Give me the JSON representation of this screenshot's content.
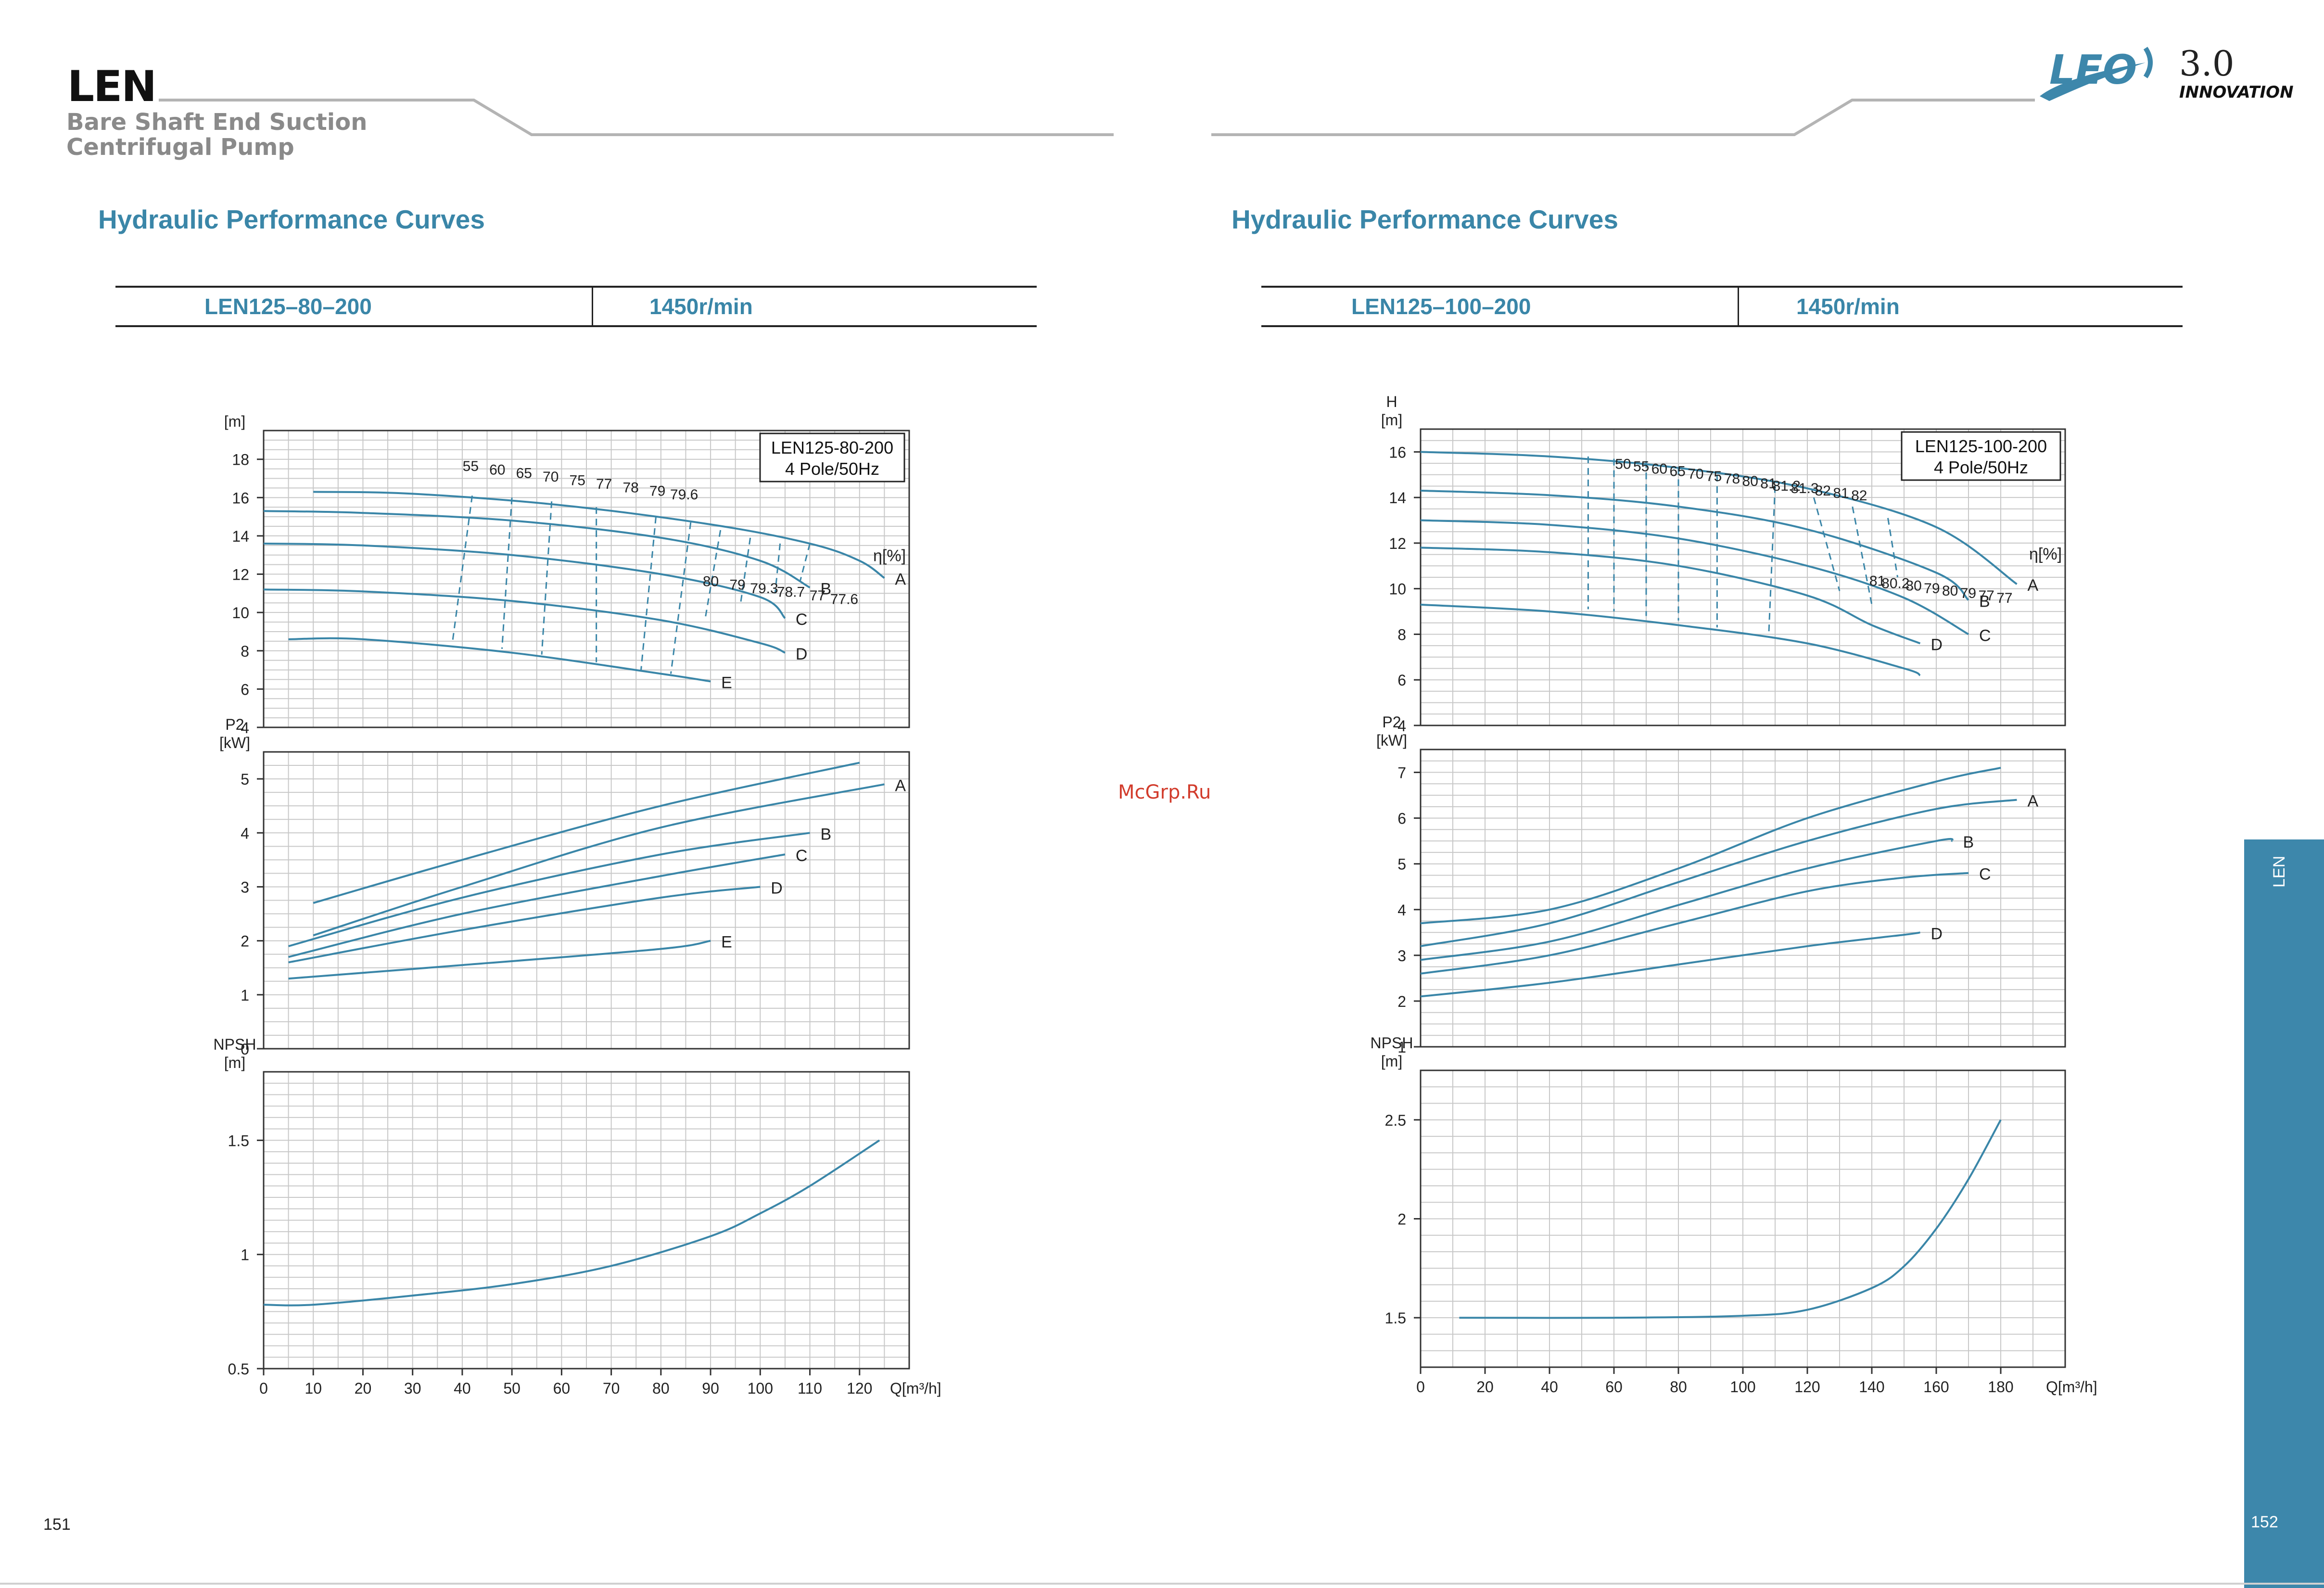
{
  "header": {
    "brand": "LEN",
    "subtitle_line1": "Bare Shaft End Suction",
    "subtitle_line2": "Centrifugal Pump",
    "logo_leo": "LEO",
    "logo_version": "3.0",
    "logo_innovation": "INNOVATION"
  },
  "watermark": "McGrp.Ru",
  "side_tab": {
    "label": "LEN",
    "page": "152"
  },
  "colors": {
    "curve": "#3a86a8",
    "title": "#3a86a8",
    "grid": "#c8c8c8",
    "tab": "#3d87ab"
  },
  "pages": [
    {
      "page_number": "151",
      "section_title": "Hydraulic Performance Curves",
      "model": "LEN125–80–200",
      "speed": "1450r/min"
    },
    {
      "page_number": "152",
      "section_title": "Hydraulic Performance Curves",
      "model": "LEN125–100–200",
      "speed": "1450r/min"
    }
  ],
  "chart_data": [
    {
      "type": "line",
      "title": "LEN125-80-200",
      "subtitle": "4 Pole/50Hz",
      "x": {
        "label": "Q[m³/h]",
        "ticks": [
          0,
          10,
          20,
          30,
          40,
          50,
          60,
          70,
          80,
          90,
          100,
          110,
          120
        ],
        "lim": [
          0,
          130
        ]
      },
      "efficiency_label": "η[%]",
      "head": {
        "ylabel": "[m]",
        "ylim": [
          4,
          19.5
        ],
        "ticks": [
          4,
          6,
          8,
          10,
          12,
          14,
          16,
          18
        ],
        "series": [
          {
            "name": "A",
            "x": [
              10,
              30,
              60,
              90,
              110,
              120,
              125
            ],
            "y": [
              16.3,
              16.2,
              15.6,
              14.6,
              13.6,
              12.7,
              11.8
            ]
          },
          {
            "name": "B",
            "x": [
              0,
              20,
              50,
              80,
              100,
              110
            ],
            "y": [
              15.3,
              15.2,
              14.8,
              13.9,
              12.7,
              11.3
            ]
          },
          {
            "name": "C",
            "x": [
              0,
              20,
              50,
              80,
              100,
              105
            ],
            "y": [
              13.6,
              13.5,
              13.0,
              12.0,
              10.8,
              9.7
            ]
          },
          {
            "name": "D",
            "x": [
              0,
              20,
              50,
              80,
              100,
              105
            ],
            "y": [
              11.2,
              11.1,
              10.6,
              9.6,
              8.4,
              7.9
            ]
          },
          {
            "name": "E",
            "x": [
              5,
              20,
              50,
              80,
              90
            ],
            "y": [
              8.6,
              8.6,
              7.9,
              6.8,
              6.4
            ]
          }
        ],
        "efficiency_labels": [
          "55",
          "60",
          "65",
          "70",
          "75",
          "77",
          "78",
          "79",
          "79.6",
          "80",
          "79",
          "79.3",
          "78.7",
          "77",
          "77.6"
        ],
        "efficiency_lines": [
          {
            "top": [
              42,
              16.1
            ],
            "bottom": [
              38,
              8.4
            ]
          },
          {
            "top": [
              50,
              16.0
            ],
            "bottom": [
              48,
              8.1
            ]
          },
          {
            "top": [
              58,
              15.8
            ],
            "bottom": [
              56,
              7.8
            ]
          },
          {
            "top": [
              67,
              15.5
            ],
            "bottom": [
              67,
              7.4
            ]
          },
          {
            "top": [
              79,
              15.0
            ],
            "bottom": [
              76,
              7.0
            ]
          },
          {
            "top": [
              86,
              14.7
            ],
            "bottom": [
              82,
              6.8
            ]
          },
          {
            "top": [
              92,
              14.3
            ],
            "bottom": [
              89,
              9.8
            ]
          },
          {
            "top": [
              98,
              13.9
            ],
            "bottom": [
              96,
              10.4
            ]
          },
          {
            "top": [
              104,
              13.6
            ],
            "bottom": [
              103,
              11.0
            ]
          },
          {
            "top": [
              110,
              13.6
            ],
            "bottom": [
              108,
              11.6
            ]
          }
        ]
      },
      "power": {
        "ylabel": "P2\n[kW]",
        "ylim": [
          0,
          5.5
        ],
        "ticks": [
          0,
          1,
          2,
          3,
          4,
          5
        ],
        "series": [
          {
            "name": "",
            "x": [
              10,
              40,
              80,
              120
            ],
            "y": [
              2.7,
              3.5,
              4.5,
              5.3
            ]
          },
          {
            "name": "A",
            "x": [
              10,
              40,
              80,
              125
            ],
            "y": [
              2.1,
              3.0,
              4.1,
              4.9
            ]
          },
          {
            "name": "B",
            "x": [
              5,
              40,
              80,
              110
            ],
            "y": [
              1.9,
              2.8,
              3.6,
              4.0
            ]
          },
          {
            "name": "C",
            "x": [
              5,
              40,
              80,
              105
            ],
            "y": [
              1.7,
              2.5,
              3.2,
              3.6
            ]
          },
          {
            "name": "D",
            "x": [
              5,
              40,
              80,
              100
            ],
            "y": [
              1.6,
              2.2,
              2.8,
              3.0
            ]
          },
          {
            "name": "E",
            "x": [
              5,
              40,
              80,
              90
            ],
            "y": [
              1.3,
              1.55,
              1.85,
              2.0
            ]
          }
        ]
      },
      "npsh": {
        "ylabel": "NPSH\n[m]",
        "ylim": [
          0.5,
          1.8
        ],
        "ticks": [
          0.5,
          1.0,
          1.5
        ],
        "series": [
          {
            "name": "NPSH",
            "x": [
              0,
              10,
              30,
              50,
              70,
              90,
              100,
              110,
              124
            ],
            "y": [
              0.78,
              0.78,
              0.82,
              0.87,
              0.95,
              1.08,
              1.18,
              1.3,
              1.5
            ]
          }
        ]
      }
    },
    {
      "type": "line",
      "title": "LEN125-100-200",
      "subtitle": "4 Pole/50Hz",
      "x": {
        "label": "Q[m³/h]",
        "ticks": [
          0,
          20,
          40,
          60,
          80,
          100,
          120,
          140,
          160,
          180
        ],
        "lim": [
          0,
          200
        ]
      },
      "efficiency_label": "η[%]",
      "head": {
        "ylabel": "H\n[m]",
        "ylim": [
          4,
          17
        ],
        "ticks": [
          4,
          6,
          8,
          10,
          12,
          14,
          16
        ],
        "series": [
          {
            "name": "A",
            "x": [
              0,
              40,
              80,
              120,
              160,
              185
            ],
            "y": [
              16.0,
              15.8,
              15.3,
              14.4,
              12.7,
              10.2
            ]
          },
          {
            "name": "B",
            "x": [
              0,
              40,
              80,
              120,
              160,
              170
            ],
            "y": [
              14.3,
              14.1,
              13.6,
              12.6,
              10.7,
              9.5
            ]
          },
          {
            "name": "C",
            "x": [
              0,
              40,
              80,
              120,
              150,
              170
            ],
            "y": [
              13.0,
              12.8,
              12.2,
              11.0,
              9.6,
              8.0
            ]
          },
          {
            "name": "D",
            "x": [
              0,
              40,
              80,
              120,
              140,
              155
            ],
            "y": [
              11.8,
              11.6,
              11.0,
              9.7,
              8.4,
              7.6
            ]
          },
          {
            "name": "",
            "x": [
              0,
              40,
              80,
              120,
              150,
              155
            ],
            "y": [
              9.3,
              9.0,
              8.4,
              7.6,
              6.5,
              6.2
            ]
          }
        ],
        "efficiency_labels": [
          "50",
          "55",
          "60",
          "65",
          "70",
          "75",
          "78",
          "80",
          "81",
          "81.2",
          "81.3",
          "82",
          "81",
          "82",
          "81",
          "80.2",
          "80",
          "79",
          "80",
          "79",
          "77",
          "77"
        ],
        "efficiency_lines": [
          {
            "top": [
              52,
              15.8
            ],
            "bottom": [
              52,
              9.1
            ]
          },
          {
            "top": [
              60,
              15.7
            ],
            "bottom": [
              60,
              9.0
            ]
          },
          {
            "top": [
              70,
              15.6
            ],
            "bottom": [
              70,
              8.8
            ]
          },
          {
            "top": [
              80,
              15.3
            ],
            "bottom": [
              80,
              8.6
            ]
          },
          {
            "top": [
              92,
              15.0
            ],
            "bottom": [
              92,
              8.3
            ]
          },
          {
            "top": [
              110,
              14.5
            ],
            "bottom": [
              108,
              7.9
            ]
          },
          {
            "top": [
              122,
              14.0
            ],
            "bottom": [
              130,
              9.9
            ]
          },
          {
            "top": [
              134,
              13.6
            ],
            "bottom": [
              140,
              9.3
            ]
          },
          {
            "top": [
              145,
              13.1
            ],
            "bottom": [
              148,
              10.5
            ]
          }
        ]
      },
      "power": {
        "ylabel": "P2\n[kW]",
        "ylim": [
          1,
          7.5
        ],
        "ticks": [
          1,
          2,
          3,
          4,
          5,
          6,
          7
        ],
        "series": [
          {
            "name": "",
            "x": [
              0,
              40,
              80,
              120,
              160,
              180
            ],
            "y": [
              3.7,
              4.0,
              4.9,
              6.0,
              6.8,
              7.1
            ]
          },
          {
            "name": "A",
            "x": [
              0,
              40,
              80,
              120,
              160,
              185
            ],
            "y": [
              3.2,
              3.7,
              4.6,
              5.5,
              6.2,
              6.4
            ]
          },
          {
            "name": "B",
            "x": [
              0,
              40,
              80,
              120,
              160,
              165
            ],
            "y": [
              2.9,
              3.3,
              4.1,
              4.9,
              5.5,
              5.5
            ]
          },
          {
            "name": "C",
            "x": [
              0,
              40,
              80,
              120,
              150,
              170
            ],
            "y": [
              2.6,
              3.0,
              3.7,
              4.4,
              4.7,
              4.8
            ]
          },
          {
            "name": "D",
            "x": [
              0,
              40,
              80,
              120,
              150,
              155
            ],
            "y": [
              2.1,
              2.4,
              2.8,
              3.2,
              3.45,
              3.5
            ]
          }
        ]
      },
      "npsh": {
        "ylabel": "NPSH\n[m]",
        "ylim": [
          1.25,
          2.75
        ],
        "ticks": [
          1.5,
          2.0,
          2.5
        ],
        "series": [
          {
            "name": "NPSH",
            "x": [
              12,
              60,
              100,
              120,
              140,
              150,
              160,
              170,
              180
            ],
            "y": [
              1.5,
              1.5,
              1.51,
              1.54,
              1.65,
              1.76,
              1.95,
              2.2,
              2.5
            ]
          }
        ]
      }
    }
  ]
}
